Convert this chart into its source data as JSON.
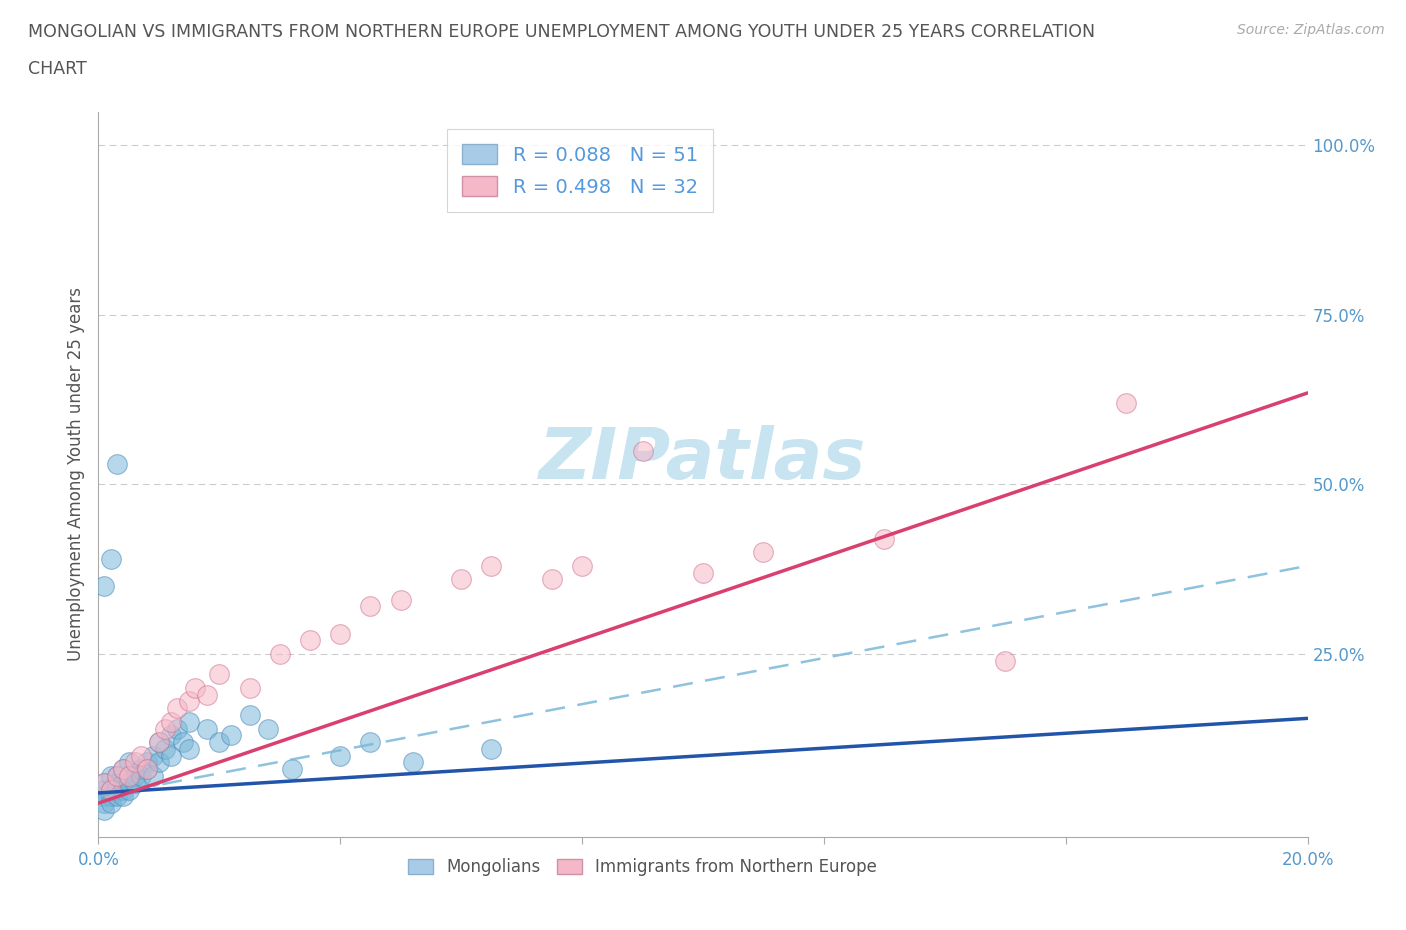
{
  "title_line1": "MONGOLIAN VS IMMIGRANTS FROM NORTHERN EUROPE UNEMPLOYMENT AMONG YOUTH UNDER 25 YEARS CORRELATION",
  "title_line2": "CHART",
  "source": "Source: ZipAtlas.com",
  "ylabel": "Unemployment Among Youth under 25 years",
  "xlim": [
    0.0,
    0.2
  ],
  "ylim": [
    -0.02,
    1.05
  ],
  "mongolian_color": "#7ab8d9",
  "mongolian_edge_color": "#4a88b9",
  "immigrant_color": "#f5b8c8",
  "immigrant_edge_color": "#d07090",
  "mongolian_line_color": "#2255aa",
  "immigrant_line_color": "#d94070",
  "dashed_line_color": "#7ab8d9",
  "watermark_color": "#c8e4f0",
  "legend_R1": "R = 0.088",
  "legend_N1": "N = 51",
  "legend_R2": "R = 0.498",
  "legend_N2": "N = 32",
  "legend_color1": "#5599dd",
  "legend_color2": "#dd4477",
  "mong_x": [
    0.001,
    0.001,
    0.001,
    0.001,
    0.001,
    0.002,
    0.002,
    0.002,
    0.002,
    0.003,
    0.003,
    0.003,
    0.003,
    0.004,
    0.004,
    0.004,
    0.004,
    0.005,
    0.005,
    0.005,
    0.005,
    0.006,
    0.006,
    0.007,
    0.007,
    0.008,
    0.008,
    0.009,
    0.009,
    0.01,
    0.01,
    0.011,
    0.012,
    0.012,
    0.013,
    0.014,
    0.015,
    0.015,
    0.018,
    0.02,
    0.022,
    0.025,
    0.028,
    0.032,
    0.04,
    0.045,
    0.052,
    0.065,
    0.001,
    0.002,
    0.003
  ],
  "mong_y": [
    0.05,
    0.04,
    0.03,
    0.06,
    0.02,
    0.05,
    0.04,
    0.07,
    0.03,
    0.06,
    0.05,
    0.04,
    0.07,
    0.06,
    0.05,
    0.04,
    0.08,
    0.07,
    0.06,
    0.05,
    0.09,
    0.07,
    0.06,
    0.08,
    0.07,
    0.09,
    0.08,
    0.1,
    0.07,
    0.12,
    0.09,
    0.11,
    0.13,
    0.1,
    0.14,
    0.12,
    0.15,
    0.11,
    0.14,
    0.12,
    0.13,
    0.16,
    0.14,
    0.08,
    0.1,
    0.12,
    0.09,
    0.11,
    0.35,
    0.39,
    0.53
  ],
  "imm_x": [
    0.001,
    0.002,
    0.003,
    0.004,
    0.005,
    0.006,
    0.007,
    0.008,
    0.01,
    0.011,
    0.012,
    0.013,
    0.015,
    0.016,
    0.018,
    0.02,
    0.025,
    0.03,
    0.035,
    0.04,
    0.045,
    0.05,
    0.06,
    0.065,
    0.075,
    0.08,
    0.09,
    0.1,
    0.11,
    0.13,
    0.15,
    0.17
  ],
  "imm_y": [
    0.06,
    0.05,
    0.07,
    0.08,
    0.07,
    0.09,
    0.1,
    0.08,
    0.12,
    0.14,
    0.15,
    0.17,
    0.18,
    0.2,
    0.19,
    0.22,
    0.2,
    0.25,
    0.27,
    0.28,
    0.32,
    0.33,
    0.36,
    0.38,
    0.36,
    0.38,
    0.55,
    0.37,
    0.4,
    0.42,
    0.24,
    0.62
  ],
  "mong_line_x0": 0.0,
  "mong_line_x1": 0.2,
  "mong_line_y0": 0.045,
  "mong_line_y1": 0.155,
  "imm_line_x0": 0.0,
  "imm_line_x1": 0.2,
  "imm_line_y0": 0.03,
  "imm_line_y1": 0.635,
  "dash_line_x0": 0.0,
  "dash_line_x1": 0.2,
  "dash_line_y0": 0.04,
  "dash_line_y1": 0.38
}
